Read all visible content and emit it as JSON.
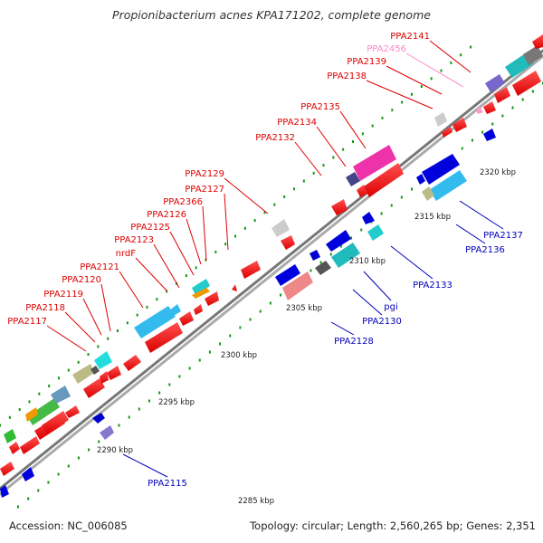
{
  "title": "Propionibacterium acnes KPA171202, complete genome",
  "footer": {
    "accession": "Accession: NC_006085",
    "summary": "Topology: circular; Length: 2,560,265 bp; Genes: 2,351"
  },
  "scale_ticks": [
    {
      "label": "2285 kbp"
    },
    {
      "label": "2290 kbp"
    },
    {
      "label": "2295 kbp"
    },
    {
      "label": "2300 kbp"
    },
    {
      "label": "2305 kbp"
    },
    {
      "label": "2310 kbp"
    },
    {
      "label": "2315 kbp"
    },
    {
      "label": "2320 kbp"
    }
  ],
  "forward_labels": [
    {
      "text": "PPA2117"
    },
    {
      "text": "PPA2118"
    },
    {
      "text": "PPA2119"
    },
    {
      "text": "PPA2120"
    },
    {
      "text": "PPA2121"
    },
    {
      "text": "nrdF"
    },
    {
      "text": "PPA2123"
    },
    {
      "text": "PPA2125"
    },
    {
      "text": "PPA2126"
    },
    {
      "text": "PPA2366"
    },
    {
      "text": "PPA2127"
    },
    {
      "text": "PPA2129"
    },
    {
      "text": "PPA2132"
    },
    {
      "text": "PPA2134"
    },
    {
      "text": "PPA2135"
    },
    {
      "text": "PPA2138"
    },
    {
      "text": "PPA2139"
    },
    {
      "text": "PPA2456"
    },
    {
      "text": "PPA2141"
    }
  ],
  "reverse_labels": [
    {
      "text": "PPA2115"
    },
    {
      "text": "PPA2128"
    },
    {
      "text": "PPA2130"
    },
    {
      "text": "pgi"
    },
    {
      "text": "PPA2133"
    },
    {
      "text": "PPA2136"
    },
    {
      "text": "PPA2137"
    }
  ],
  "colors": {
    "forward_strand": "#ff0000",
    "reverse_strand": "#0000ee",
    "pseudo_label": "#ff88cc",
    "backbone": "#888888"
  }
}
